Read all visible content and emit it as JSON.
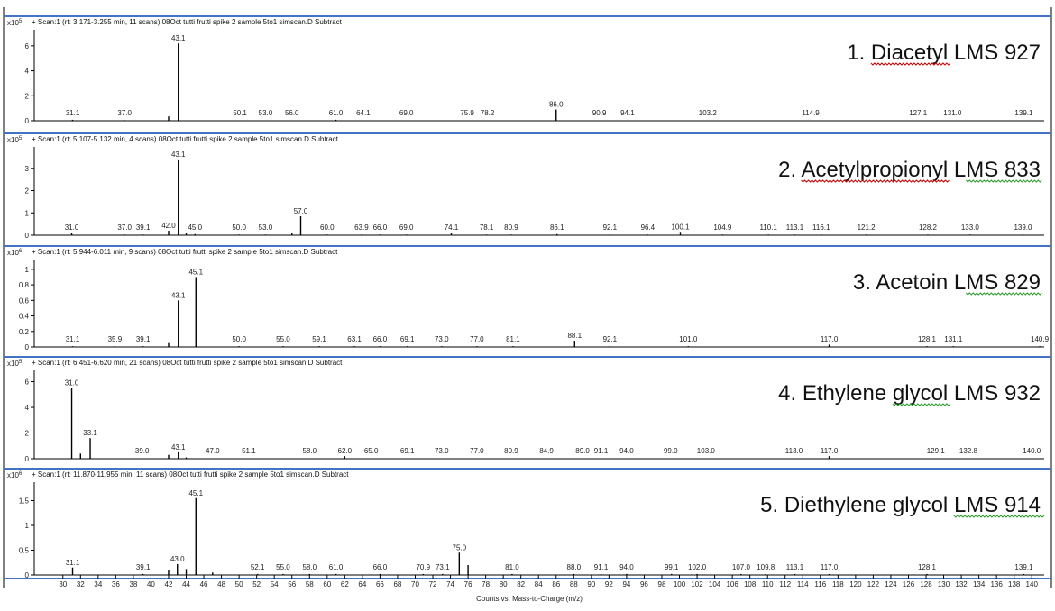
{
  "x_axis": {
    "title": "Counts vs. Mass-to-Charge (m/z)",
    "min": 29,
    "max": 141,
    "ticks": [
      30,
      32,
      34,
      36,
      38,
      40,
      42,
      44,
      46,
      48,
      50,
      52,
      54,
      56,
      58,
      60,
      62,
      64,
      66,
      68,
      70,
      72,
      74,
      76,
      78,
      80,
      82,
      84,
      86,
      88,
      90,
      92,
      94,
      96,
      98,
      100,
      102,
      104,
      106,
      108,
      110,
      112,
      114,
      116,
      118,
      120,
      122,
      124,
      126,
      128,
      130,
      132,
      134,
      136,
      138,
      140
    ]
  },
  "colors": {
    "frame": "#4472c4",
    "bar": "#000000",
    "squiggle_red": "#d00000",
    "squiggle_green": "#2e9b2e"
  },
  "chart_data": [
    {
      "type": "bar",
      "header": "+ Scan:1 (rt: 3.171-3.255 min, 11 scans) 08Oct tutti frutti spike 2 sample 5to1 simscan.D  Subtract",
      "scale_label": "x10",
      "scale_exp": "5",
      "compound_num": "1. ",
      "compound_name": "Diacetyl",
      "compound_lms": "  LMS 927",
      "ylim": [
        0,
        7
      ],
      "yticks": [
        0,
        2,
        4,
        6
      ],
      "peaks": [
        {
          "x": 31.1,
          "y": 0.08,
          "label": "31.1"
        },
        {
          "x": 37.0,
          "y": 0.05,
          "label": "37.0"
        },
        {
          "x": 42.0,
          "y": 0.35,
          "label": ""
        },
        {
          "x": 43.1,
          "y": 6.2,
          "label": "43.1"
        },
        {
          "x": 50.1,
          "y": 0.04,
          "label": "50.1"
        },
        {
          "x": 53.0,
          "y": 0.03,
          "label": "53.0"
        },
        {
          "x": 56.0,
          "y": 0.03,
          "label": "56.0"
        },
        {
          "x": 61.0,
          "y": 0.08,
          "label": "61.0"
        },
        {
          "x": 64.1,
          "y": 0.03,
          "label": "64.1"
        },
        {
          "x": 69.0,
          "y": 0.03,
          "label": "69.0"
        },
        {
          "x": 75.9,
          "y": 0.03,
          "label": "75.9"
        },
        {
          "x": 78.2,
          "y": 0.03,
          "label": "78.2"
        },
        {
          "x": 86.0,
          "y": 0.9,
          "label": "86.0"
        },
        {
          "x": 90.9,
          "y": 0.03,
          "label": "90.9"
        },
        {
          "x": 94.1,
          "y": 0.03,
          "label": "94.1"
        },
        {
          "x": 103.2,
          "y": 0.03,
          "label": "103.2"
        },
        {
          "x": 114.9,
          "y": 0.03,
          "label": "114.9"
        },
        {
          "x": 127.1,
          "y": 0.03,
          "label": "127.1"
        },
        {
          "x": 131.0,
          "y": 0.03,
          "label": "131.0"
        },
        {
          "x": 139.1,
          "y": 0.03,
          "label": "139.1"
        }
      ]
    },
    {
      "type": "bar",
      "header": "+ Scan:1 (rt: 5.107-5.132 min, 4 scans) 08Oct tutti frutti spike 2 sample 5to1 simscan.D  Subtract",
      "scale_label": "x10",
      "scale_exp": "5",
      "compound_num": "2. ",
      "compound_name": "Acetylpropionyl",
      "compound_lms": "  LMS 833",
      "ylim": [
        0,
        3.8
      ],
      "yticks": [
        0,
        1,
        2,
        3
      ],
      "peaks": [
        {
          "x": 31.0,
          "y": 0.1,
          "label": "31.0"
        },
        {
          "x": 37.0,
          "y": 0.03,
          "label": "37.0"
        },
        {
          "x": 39.1,
          "y": 0.03,
          "label": "39.1"
        },
        {
          "x": 42.0,
          "y": 0.2,
          "label": "42.0"
        },
        {
          "x": 43.1,
          "y": 3.4,
          "label": "43.1"
        },
        {
          "x": 44.0,
          "y": 0.1,
          "label": ""
        },
        {
          "x": 45.0,
          "y": 0.05,
          "label": "45.0"
        },
        {
          "x": 50.0,
          "y": 0.03,
          "label": "50.0"
        },
        {
          "x": 53.0,
          "y": 0.03,
          "label": "53.0"
        },
        {
          "x": 56.0,
          "y": 0.08,
          "label": ""
        },
        {
          "x": 57.0,
          "y": 0.85,
          "label": "57.0"
        },
        {
          "x": 60.0,
          "y": 0.03,
          "label": "60.0"
        },
        {
          "x": 63.9,
          "y": 0.03,
          "label": "63.9"
        },
        {
          "x": 66.0,
          "y": 0.03,
          "label": "66.0"
        },
        {
          "x": 69.0,
          "y": 0.03,
          "label": "69.0"
        },
        {
          "x": 74.1,
          "y": 0.08,
          "label": "74.1"
        },
        {
          "x": 78.1,
          "y": 0.03,
          "label": "78.1"
        },
        {
          "x": 80.9,
          "y": 0.03,
          "label": "80.9"
        },
        {
          "x": 86.1,
          "y": 0.05,
          "label": "86.1"
        },
        {
          "x": 92.1,
          "y": 0.03,
          "label": "92.1"
        },
        {
          "x": 96.4,
          "y": 0.03,
          "label": "96.4"
        },
        {
          "x": 100.1,
          "y": 0.15,
          "label": "100.1"
        },
        {
          "x": 104.9,
          "y": 0.03,
          "label": "104.9"
        },
        {
          "x": 110.1,
          "y": 0.03,
          "label": "110.1"
        },
        {
          "x": 113.1,
          "y": 0.03,
          "label": "113.1"
        },
        {
          "x": 116.1,
          "y": 0.03,
          "label": "116.1"
        },
        {
          "x": 121.2,
          "y": 0.03,
          "label": "121.2"
        },
        {
          "x": 128.2,
          "y": 0.03,
          "label": "128.2"
        },
        {
          "x": 133.0,
          "y": 0.03,
          "label": "133.0"
        },
        {
          "x": 139.0,
          "y": 0.03,
          "label": "139.0"
        }
      ]
    },
    {
      "type": "bar",
      "header": "+ Scan:1 (rt: 5.944-6.011 min, 9 scans) 08Oct tutti frutti spike 2 sample 5to1 simscan.D  Subtract",
      "scale_label": "x10",
      "scale_exp": "6",
      "compound_num": "3. ",
      "compound_name": "Acetoin",
      "compound_lms": "  LMS 829",
      "ylim": [
        0,
        1.08
      ],
      "yticks": [
        0,
        0.2,
        0.4,
        0.6,
        0.8,
        1
      ],
      "peaks": [
        {
          "x": 31.1,
          "y": 0.01,
          "label": "31.1"
        },
        {
          "x": 35.9,
          "y": 0.01,
          "label": "35.9"
        },
        {
          "x": 39.1,
          "y": 0.01,
          "label": "39.1"
        },
        {
          "x": 42.0,
          "y": 0.05,
          "label": ""
        },
        {
          "x": 43.1,
          "y": 0.6,
          "label": "43.1"
        },
        {
          "x": 45.1,
          "y": 0.9,
          "label": "45.1"
        },
        {
          "x": 50.0,
          "y": 0.01,
          "label": "50.0"
        },
        {
          "x": 55.0,
          "y": 0.01,
          "label": "55.0"
        },
        {
          "x": 59.1,
          "y": 0.01,
          "label": "59.1"
        },
        {
          "x": 63.1,
          "y": 0.01,
          "label": "63.1"
        },
        {
          "x": 66.0,
          "y": 0.01,
          "label": "66.0"
        },
        {
          "x": 69.1,
          "y": 0.01,
          "label": "69.1"
        },
        {
          "x": 73.0,
          "y": 0.01,
          "label": "73.0"
        },
        {
          "x": 77.0,
          "y": 0.01,
          "label": "77.0"
        },
        {
          "x": 81.1,
          "y": 0.01,
          "label": "81.1"
        },
        {
          "x": 88.1,
          "y": 0.08,
          "label": "88.1"
        },
        {
          "x": 92.1,
          "y": 0.01,
          "label": "92.1"
        },
        {
          "x": 101.0,
          "y": 0.01,
          "label": "101.0"
        },
        {
          "x": 117.0,
          "y": 0.03,
          "label": "117.0"
        },
        {
          "x": 128.1,
          "y": 0.01,
          "label": "128.1"
        },
        {
          "x": 131.1,
          "y": 0.01,
          "label": "131.1"
        },
        {
          "x": 140.9,
          "y": 0.01,
          "label": "140.9"
        }
      ]
    },
    {
      "type": "bar",
      "header": "+ Scan:1 (rt: 6.451-6.620 min, 21 scans) 08Oct tutti frutti spike 2 sample 5to1 simscan.D  Subtract",
      "scale_label": "x10",
      "scale_exp": "5",
      "compound_num": "4. ",
      "compound_name": "Ethylene ",
      "compound_name2": "glycol",
      "compound_lms": "  LMS 932",
      "ylim": [
        0,
        6.6
      ],
      "yticks": [
        0,
        2,
        4,
        6
      ],
      "peaks": [
        {
          "x": 31.0,
          "y": 5.5,
          "label": "31.0"
        },
        {
          "x": 32.0,
          "y": 0.4,
          "label": ""
        },
        {
          "x": 33.1,
          "y": 1.6,
          "label": "33.1"
        },
        {
          "x": 39.0,
          "y": 0.03,
          "label": "39.0"
        },
        {
          "x": 42.0,
          "y": 0.3,
          "label": ""
        },
        {
          "x": 43.1,
          "y": 0.5,
          "label": "43.1"
        },
        {
          "x": 44.0,
          "y": 0.1,
          "label": ""
        },
        {
          "x": 47.0,
          "y": 0.03,
          "label": "47.0"
        },
        {
          "x": 51.1,
          "y": 0.03,
          "label": "51.1"
        },
        {
          "x": 58.0,
          "y": 0.03,
          "label": "58.0"
        },
        {
          "x": 62.0,
          "y": 0.2,
          "label": "62.0"
        },
        {
          "x": 65.0,
          "y": 0.03,
          "label": "65.0"
        },
        {
          "x": 69.1,
          "y": 0.03,
          "label": "69.1"
        },
        {
          "x": 73.0,
          "y": 0.03,
          "label": "73.0"
        },
        {
          "x": 77.0,
          "y": 0.03,
          "label": "77.0"
        },
        {
          "x": 80.9,
          "y": 0.03,
          "label": "80.9"
        },
        {
          "x": 84.9,
          "y": 0.03,
          "label": "84.9"
        },
        {
          "x": 89.0,
          "y": 0.03,
          "label": "89.0"
        },
        {
          "x": 91.1,
          "y": 0.03,
          "label": "91.1"
        },
        {
          "x": 94.0,
          "y": 0.03,
          "label": "94.0"
        },
        {
          "x": 99.0,
          "y": 0.03,
          "label": "99.0"
        },
        {
          "x": 103.0,
          "y": 0.03,
          "label": "103.0"
        },
        {
          "x": 113.0,
          "y": 0.03,
          "label": "113.0"
        },
        {
          "x": 117.0,
          "y": 0.2,
          "label": "117.0"
        },
        {
          "x": 129.1,
          "y": 0.03,
          "label": "129.1"
        },
        {
          "x": 132.8,
          "y": 0.03,
          "label": "132.8"
        },
        {
          "x": 140.0,
          "y": 0.03,
          "label": "140.0"
        }
      ]
    },
    {
      "type": "bar",
      "header": "+ Scan:1 (rt: 11.870-11.955 min, 11 scans) 08Oct tutti frutti spike 2 sample 5to1 simscan.D  Subtract",
      "scale_label": "x10",
      "scale_exp": "6",
      "compound_num": "5. ",
      "compound_name": "Diethylene glycol ",
      "compound_lms": "LMS  914",
      "ylim": [
        0,
        1.8
      ],
      "yticks": [
        0,
        0.5,
        1,
        1.5
      ],
      "peaks": [
        {
          "x": 31.1,
          "y": 0.15,
          "label": "31.1"
        },
        {
          "x": 39.1,
          "y": 0.02,
          "label": "39.1"
        },
        {
          "x": 42.0,
          "y": 0.1,
          "label": ""
        },
        {
          "x": 43.0,
          "y": 0.22,
          "label": "43.0"
        },
        {
          "x": 44.0,
          "y": 0.12,
          "label": ""
        },
        {
          "x": 45.1,
          "y": 1.55,
          "label": "45.1"
        },
        {
          "x": 47.0,
          "y": 0.05,
          "label": ""
        },
        {
          "x": 52.1,
          "y": 0.02,
          "label": "52.1"
        },
        {
          "x": 55.0,
          "y": 0.02,
          "label": "55.0"
        },
        {
          "x": 58.0,
          "y": 0.02,
          "label": "58.0"
        },
        {
          "x": 61.0,
          "y": 0.02,
          "label": "61.0"
        },
        {
          "x": 66.0,
          "y": 0.02,
          "label": "66.0"
        },
        {
          "x": 70.9,
          "y": 0.02,
          "label": "70.9"
        },
        {
          "x": 73.1,
          "y": 0.02,
          "label": "73.1"
        },
        {
          "x": 75.0,
          "y": 0.45,
          "label": "75.0"
        },
        {
          "x": 76.0,
          "y": 0.2,
          "label": ""
        },
        {
          "x": 81.0,
          "y": 0.02,
          "label": "81.0"
        },
        {
          "x": 88.0,
          "y": 0.02,
          "label": "88.0"
        },
        {
          "x": 91.1,
          "y": 0.02,
          "label": "91.1"
        },
        {
          "x": 94.0,
          "y": 0.02,
          "label": "94.0"
        },
        {
          "x": 99.1,
          "y": 0.02,
          "label": "99.1"
        },
        {
          "x": 102.0,
          "y": 0.02,
          "label": "102.0"
        },
        {
          "x": 107.0,
          "y": 0.02,
          "label": "107.0"
        },
        {
          "x": 109.8,
          "y": 0.02,
          "label": "109.8"
        },
        {
          "x": 113.1,
          "y": 0.02,
          "label": "113.1"
        },
        {
          "x": 117.0,
          "y": 0.02,
          "label": "117.0"
        },
        {
          "x": 128.1,
          "y": 0.02,
          "label": "128.1"
        },
        {
          "x": 139.1,
          "y": 0.02,
          "label": "139.1"
        }
      ]
    }
  ]
}
